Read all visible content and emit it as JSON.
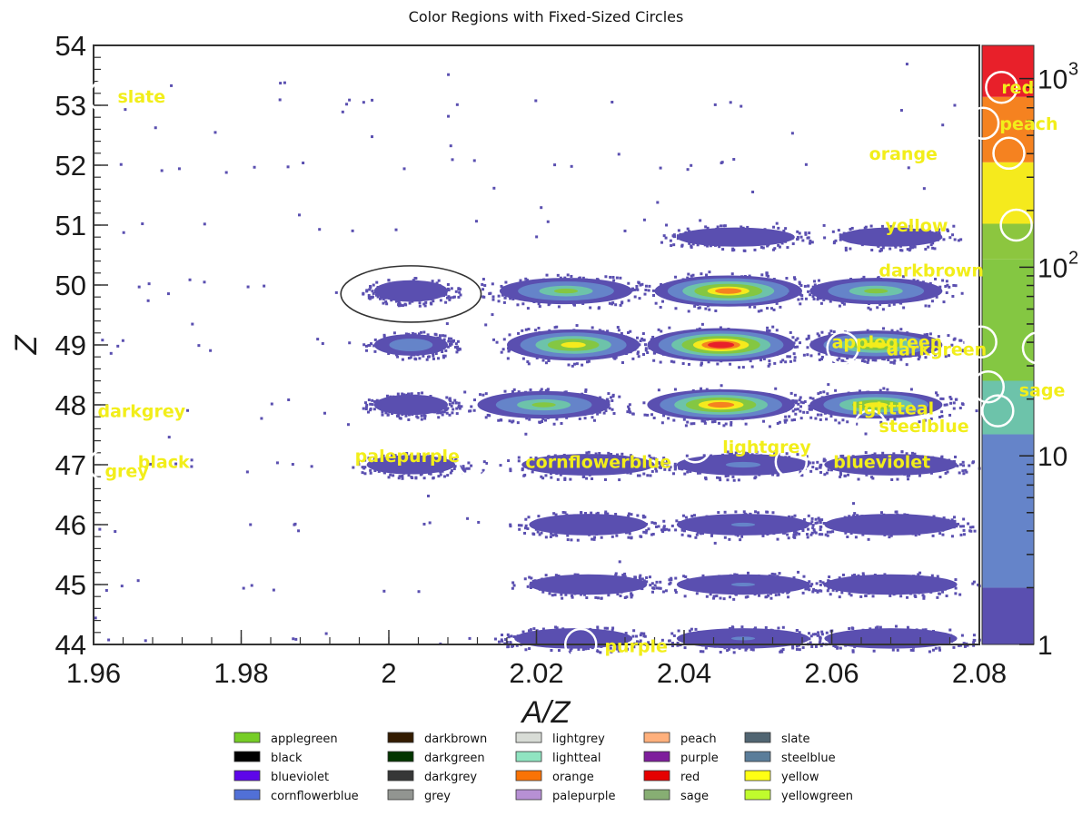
{
  "chart_data": {
    "type": "heatmap",
    "title": "Color Regions with Fixed-Sized Circles",
    "xlabel": "A/Z",
    "ylabel": "Z",
    "xlim": [
      1.96,
      2.08
    ],
    "ylim": [
      44,
      54
    ],
    "x_ticks": [
      "1.96",
      "1.98",
      "2",
      "2.02",
      "2.04",
      "2.06",
      "2.08"
    ],
    "y_ticks": [
      "44",
      "45",
      "46",
      "47",
      "48",
      "49",
      "50",
      "51",
      "52",
      "53",
      "54"
    ],
    "colorbar": {
      "scale": "log",
      "range": [
        1,
        1500
      ],
      "tick_labels": [
        {
          "value": 1,
          "base": "1",
          "exp": ""
        },
        {
          "value": 10,
          "base": "10",
          "exp": ""
        },
        {
          "value": 100,
          "base": "10",
          "exp": "2"
        },
        {
          "value": 1000,
          "base": "10",
          "exp": "3"
        }
      ],
      "bands": [
        {
          "from": 1,
          "to": 2,
          "color": "#5a4fb0"
        },
        {
          "from": 2,
          "to": 13,
          "color": "#6584c9"
        },
        {
          "from": 13,
          "to": 25,
          "color": "#6dc3aa"
        },
        {
          "from": 25,
          "to": 110,
          "color": "#84c742"
        },
        {
          "from": 110,
          "to": 170,
          "color": "#8cc63f"
        },
        {
          "from": 170,
          "to": 360,
          "color": "#f5ea1d"
        },
        {
          "from": 360,
          "to": 800,
          "color": "#f58220"
        },
        {
          "from": 800,
          "to": 1500,
          "color": "#e8202a"
        }
      ]
    },
    "clusters": [
      {
        "x": 2.003,
        "y": 47,
        "w": 0.006,
        "h": 0.16,
        "peak": 3
      },
      {
        "x": 2.027,
        "y": 47,
        "w": 0.009,
        "h": 0.18,
        "peak": 4
      },
      {
        "x": 2.048,
        "y": 47,
        "w": 0.009,
        "h": 0.18,
        "peak": 6
      },
      {
        "x": 2.068,
        "y": 47,
        "w": 0.009,
        "h": 0.18,
        "peak": 4
      },
      {
        "x": 2.027,
        "y": 46,
        "w": 0.008,
        "h": 0.18,
        "peak": 3
      },
      {
        "x": 2.048,
        "y": 46,
        "w": 0.009,
        "h": 0.18,
        "peak": 5
      },
      {
        "x": 2.068,
        "y": 46,
        "w": 0.009,
        "h": 0.18,
        "peak": 4
      },
      {
        "x": 2.027,
        "y": 45,
        "w": 0.008,
        "h": 0.17,
        "peak": 3
      },
      {
        "x": 2.048,
        "y": 45,
        "w": 0.009,
        "h": 0.17,
        "peak": 5
      },
      {
        "x": 2.068,
        "y": 45,
        "w": 0.009,
        "h": 0.17,
        "peak": 4
      },
      {
        "x": 2.025,
        "y": 44.1,
        "w": 0.008,
        "h": 0.17,
        "peak": 3
      },
      {
        "x": 2.048,
        "y": 44.1,
        "w": 0.009,
        "h": 0.17,
        "peak": 5
      },
      {
        "x": 2.068,
        "y": 44.1,
        "w": 0.009,
        "h": 0.17,
        "peak": 4
      },
      {
        "x": 2.003,
        "y": 48,
        "w": 0.005,
        "h": 0.17,
        "peak": 3
      },
      {
        "x": 2.021,
        "y": 48,
        "w": 0.009,
        "h": 0.23,
        "peak": 60
      },
      {
        "x": 2.045,
        "y": 48,
        "w": 0.01,
        "h": 0.26,
        "peak": 600
      },
      {
        "x": 2.066,
        "y": 48,
        "w": 0.009,
        "h": 0.23,
        "peak": 200
      },
      {
        "x": 2.003,
        "y": 49,
        "w": 0.005,
        "h": 0.18,
        "peak": 18
      },
      {
        "x": 2.025,
        "y": 49,
        "w": 0.009,
        "h": 0.26,
        "peak": 250
      },
      {
        "x": 2.045,
        "y": 49,
        "w": 0.01,
        "h": 0.28,
        "peak": 1200
      },
      {
        "x": 2.066,
        "y": 49,
        "w": 0.009,
        "h": 0.24,
        "peak": 200
      },
      {
        "x": 2.003,
        "y": 49.9,
        "w": 0.005,
        "h": 0.18,
        "peak": 3
      },
      {
        "x": 2.024,
        "y": 49.9,
        "w": 0.009,
        "h": 0.22,
        "peak": 60
      },
      {
        "x": 2.046,
        "y": 49.9,
        "w": 0.01,
        "h": 0.26,
        "peak": 500
      },
      {
        "x": 2.066,
        "y": 49.9,
        "w": 0.009,
        "h": 0.22,
        "peak": 60
      },
      {
        "x": 2.047,
        "y": 50.8,
        "w": 0.008,
        "h": 0.16,
        "peak": 4
      },
      {
        "x": 2.068,
        "y": 50.8,
        "w": 0.007,
        "h": 0.16,
        "peak": 2
      }
    ],
    "ellipse_annotation": {
      "x": 2.003,
      "y": 49.85,
      "rx": 0.0095,
      "ry": 0.47
    },
    "circles": [
      {
        "label": "red",
        "x": 2.083,
        "y": 53.3,
        "lx": 2.0852,
        "ly": 53.3
      },
      {
        "label": "peach",
        "x": 2.0805,
        "y": 52.7,
        "lx": 2.0867,
        "ly": 52.7
      },
      {
        "label": "orange",
        "x": 2.084,
        "y": 52.2,
        "lx": 2.0697,
        "ly": 52.2
      },
      {
        "label": "yellow",
        "x": 2.085,
        "y": 51.0,
        "lx": 2.0715,
        "ly": 51.0
      },
      {
        "label": "darkbrown",
        "x": null,
        "y": null,
        "lx": 2.0735,
        "ly": 50.25
      },
      {
        "label": "applegreen",
        "x": 2.0615,
        "y": 48.95,
        "lx": 2.0675,
        "ly": 49.05
      },
      {
        "label": "darkgreen",
        "x": 2.0802,
        "y": 49.05,
        "lx": 2.0742,
        "ly": 48.93
      },
      {
        "label": "yellowgreen",
        "x": 2.088,
        "y": 48.95,
        "lx": null,
        "ly": null
      },
      {
        "label": "sage",
        "x": 2.0812,
        "y": 48.3,
        "lx": 2.0885,
        "ly": 48.25
      },
      {
        "label": "lightteal",
        "x": 2.0825,
        "y": 47.9,
        "lx": 2.0683,
        "ly": 47.95
      },
      {
        "label": "steelblue",
        "x": 2.0652,
        "y": 47.65,
        "lx": 2.0725,
        "ly": 47.65
      },
      {
        "label": "lightgrey",
        "x": 2.0415,
        "y": 47.3,
        "lx": 2.0512,
        "ly": 47.3
      },
      {
        "label": "blueviolet",
        "x": 2.0545,
        "y": 47.05,
        "lx": 2.0668,
        "ly": 47.05
      },
      {
        "label": "cornflowerblue",
        "x": null,
        "y": null,
        "lx": 2.0284,
        "ly": 47.05
      },
      {
        "label": "palepurple",
        "x": 2.0115,
        "y": 47.05,
        "lx": 2.0025,
        "ly": 47.15
      },
      {
        "label": "black",
        "x": 1.9615,
        "y": 47.0,
        "lx": 1.9695,
        "ly": 47.05
      },
      {
        "label": "grey",
        "x": null,
        "y": null,
        "lx": 1.9645,
        "ly": 46.9
      },
      {
        "label": "darkgrey",
        "x": null,
        "y": null,
        "lx": 1.9665,
        "ly": 47.9
      },
      {
        "label": "slate",
        "x": 1.9615,
        "y": 53.15,
        "lx": 1.9665,
        "ly": 53.15
      },
      {
        "label": "purple",
        "x": 2.026,
        "y": 44.0,
        "lx": 2.0335,
        "ly": 43.98
      }
    ]
  },
  "legend": {
    "items": [
      {
        "label": "applegreen",
        "color": "#76cd26"
      },
      {
        "label": "darkbrown",
        "color": "#341c02"
      },
      {
        "label": "lightgrey",
        "color": "#d8dcd6"
      },
      {
        "label": "peach",
        "color": "#ffb07c"
      },
      {
        "label": "slate",
        "color": "#516572"
      },
      {
        "label": "black",
        "color": "#000000"
      },
      {
        "label": "darkgreen",
        "color": "#033500"
      },
      {
        "label": "lightteal",
        "color": "#90e4c1"
      },
      {
        "label": "purple",
        "color": "#7e1e9c"
      },
      {
        "label": "steelblue",
        "color": "#5a7d9a"
      },
      {
        "label": "blueviolet",
        "color": "#5d06e9"
      },
      {
        "label": "darkgrey",
        "color": "#363737"
      },
      {
        "label": "orange",
        "color": "#f97306"
      },
      {
        "label": "red",
        "color": "#e50000"
      },
      {
        "label": "yellow",
        "color": "#ffff14"
      },
      {
        "label": "cornflowerblue",
        "color": "#5170d7"
      },
      {
        "label": "grey",
        "color": "#929591"
      },
      {
        "label": "palepurple",
        "color": "#b790d4"
      },
      {
        "label": "sage",
        "color": "#87ae73"
      },
      {
        "label": "yellowgreen",
        "color": "#c0fb2d"
      }
    ]
  },
  "colors": {
    "annotation_text": "#f2ee1a",
    "circle_stroke": "#ffffff",
    "plot_frame": "#333333"
  }
}
